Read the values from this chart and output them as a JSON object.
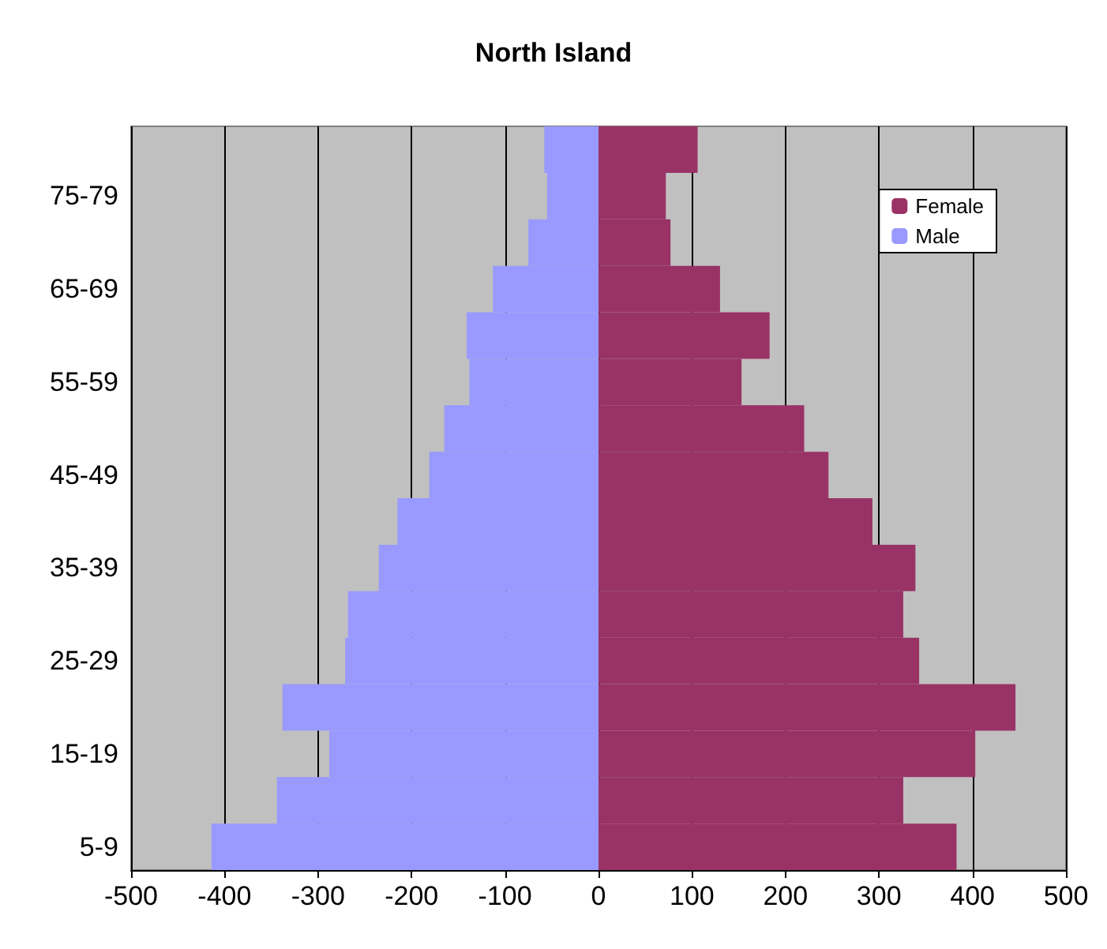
{
  "chart_data": {
    "type": "bar",
    "title": "North Island",
    "orientation": "horizontal",
    "stacked": true,
    "categories": [
      null,
      "75-79",
      null,
      "65-69",
      null,
      "55-59",
      null,
      "45-49",
      null,
      "35-39",
      null,
      "25-29",
      null,
      "15-19",
      null,
      "5-9"
    ],
    "series": [
      {
        "name": "Female",
        "color": "#993366",
        "values": [
          106,
          72,
          77,
          130,
          183,
          153,
          220,
          246,
          293,
          339,
          326,
          343,
          446,
          403,
          326,
          383
        ]
      },
      {
        "name": "Male",
        "color": "#9999ff",
        "values": [
          -58,
          -55,
          -75,
          -113,
          -141,
          -138,
          -165,
          -181,
          -215,
          -235,
          -268,
          -271,
          -338,
          -288,
          -344,
          -414
        ]
      }
    ],
    "xlim": [
      -500,
      500
    ],
    "xticks": [
      -500,
      -400,
      -300,
      -200,
      -100,
      0,
      100,
      200,
      300,
      400,
      500
    ],
    "grid": "x",
    "legend": "top right"
  }
}
